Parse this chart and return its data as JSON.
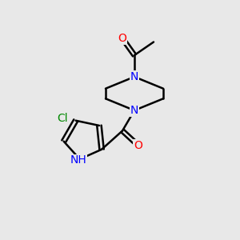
{
  "bg_color": "#e8e8e8",
  "bond_color": "#000000",
  "bond_lw": 1.8,
  "atom_colors": {
    "N": "#0000ff",
    "O": "#ff0000",
    "Cl": "#008800",
    "C": "#000000",
    "H": "#000000"
  },
  "font_size": 10,
  "font_size_small": 8,
  "figsize": [
    3.0,
    3.0
  ],
  "dpi": 100
}
